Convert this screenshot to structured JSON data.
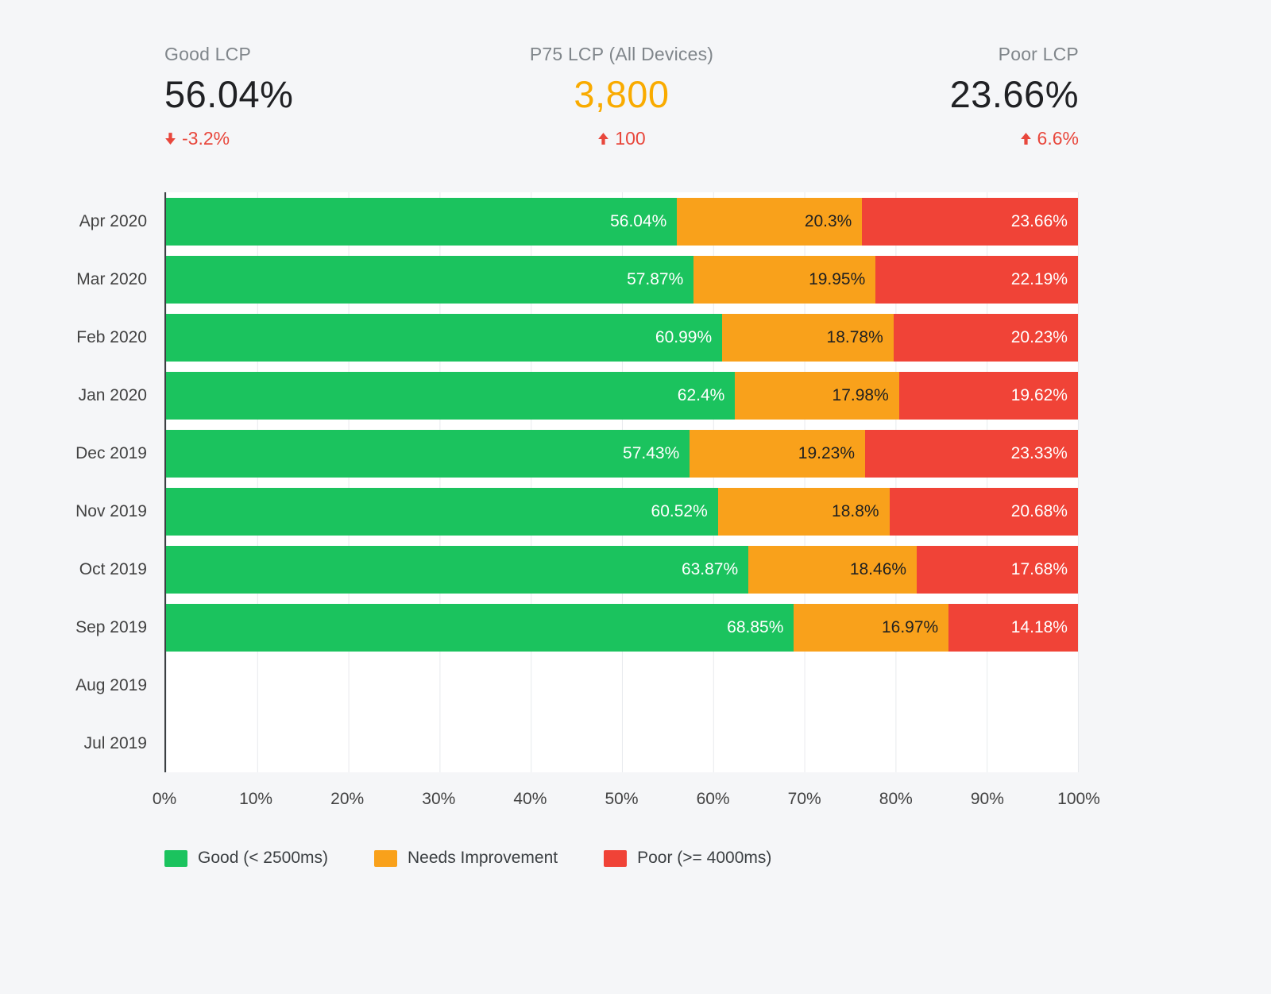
{
  "colors": {
    "page_bg": "#f5f6f8",
    "good": "#1bc35e",
    "needs_improvement": "#f9a11b",
    "poor": "#f04337",
    "delta_red": "#e8473c",
    "p75_orange": "#f9ab00"
  },
  "kpis": [
    {
      "label": "Good LCP",
      "value": "56.04%",
      "delta": "-3.2%",
      "direction": "down"
    },
    {
      "label": "P75 LCP (All Devices)",
      "value": "3,800",
      "delta": "100",
      "direction": "up",
      "value_color": "#f9ab00"
    },
    {
      "label": "Poor LCP",
      "value": "23.66%",
      "delta": "6.6%",
      "direction": "up"
    }
  ],
  "chart_data": {
    "type": "bar",
    "orientation": "horizontal",
    "stacked": true,
    "title": "",
    "xlabel": "",
    "ylabel": "",
    "xlim": [
      0,
      100
    ],
    "grid": true,
    "legend_position": "bottom",
    "categories": [
      "Apr 2020",
      "Mar 2020",
      "Feb 2020",
      "Jan 2020",
      "Dec 2019",
      "Nov 2019",
      "Oct 2019",
      "Sep 2019",
      "Aug 2019",
      "Jul 2019"
    ],
    "x_ticks": [
      "0%",
      "10%",
      "20%",
      "30%",
      "40%",
      "50%",
      "60%",
      "70%",
      "80%",
      "90%",
      "100%"
    ],
    "series": [
      {
        "name": "Good (< 2500ms)",
        "key": "good",
        "color": "#1bc35e",
        "label_color": "#ffffff",
        "values": [
          56.04,
          57.87,
          60.99,
          62.4,
          57.43,
          60.52,
          63.87,
          68.85,
          null,
          null
        ],
        "labels": [
          "56.04%",
          "57.87%",
          "60.99%",
          "62.4%",
          "57.43%",
          "60.52%",
          "63.87%",
          "68.85%",
          "",
          ""
        ]
      },
      {
        "name": "Needs Improvement",
        "key": "needs-improvement",
        "color": "#f9a11b",
        "label_color": "#212121",
        "values": [
          20.3,
          19.95,
          18.78,
          17.98,
          19.23,
          18.8,
          18.46,
          16.97,
          null,
          null
        ],
        "labels": [
          "20.3%",
          "19.95%",
          "18.78%",
          "17.98%",
          "19.23%",
          "18.8%",
          "18.46%",
          "16.97%",
          "",
          ""
        ]
      },
      {
        "name": "Poor (>= 4000ms)",
        "key": "poor",
        "color": "#f04337",
        "label_color": "#ffffff",
        "values": [
          23.66,
          22.19,
          20.23,
          19.62,
          23.33,
          20.68,
          17.68,
          14.18,
          null,
          null
        ],
        "labels": [
          "23.66%",
          "22.19%",
          "20.23%",
          "19.62%",
          "23.33%",
          "20.68%",
          "17.68%",
          "14.18%",
          "",
          ""
        ]
      }
    ]
  }
}
